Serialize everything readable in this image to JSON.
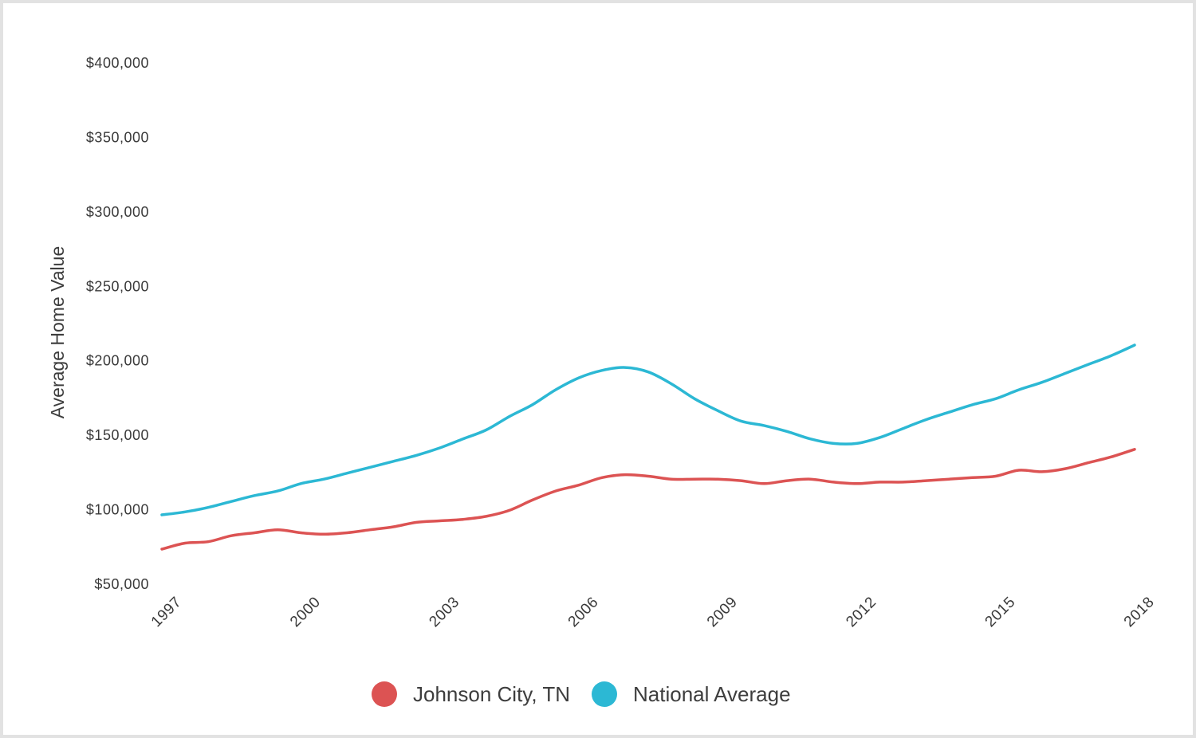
{
  "chart_data": {
    "type": "line",
    "ylabel": "Average Home Value",
    "xlabel": "",
    "ylim": [
      50000,
      400000
    ],
    "xlim": [
      1997,
      2018
    ],
    "y_ticks": [
      "$50,000",
      "$100,000",
      "$150,000",
      "$200,000",
      "$250,000",
      "$300,000",
      "$350,000",
      "$400,000"
    ],
    "y_tick_values": [
      50000,
      100000,
      150000,
      200000,
      250000,
      300000,
      350000,
      400000
    ],
    "x_ticks": [
      "1997",
      "2000",
      "2003",
      "2006",
      "2009",
      "2012",
      "2015",
      "2018"
    ],
    "x_tick_values": [
      1997,
      2000,
      2003,
      2006,
      2009,
      2012,
      2015,
      2018
    ],
    "grid": false,
    "legend_position": "bottom-center",
    "series": [
      {
        "name": "Johnson City, TN",
        "color": "#dc5353",
        "points": [
          [
            1997.0,
            73000
          ],
          [
            1997.5,
            77000
          ],
          [
            1998.0,
            78000
          ],
          [
            1998.5,
            82000
          ],
          [
            1999.0,
            84000
          ],
          [
            1999.5,
            86000
          ],
          [
            2000.0,
            84000
          ],
          [
            2000.5,
            83000
          ],
          [
            2001.0,
            84000
          ],
          [
            2001.5,
            86000
          ],
          [
            2002.0,
            88000
          ],
          [
            2002.5,
            91000
          ],
          [
            2003.0,
            92000
          ],
          [
            2003.5,
            93000
          ],
          [
            2004.0,
            95000
          ],
          [
            2004.5,
            99000
          ],
          [
            2005.0,
            106000
          ],
          [
            2005.5,
            112000
          ],
          [
            2006.0,
            116000
          ],
          [
            2006.5,
            121000
          ],
          [
            2007.0,
            123000
          ],
          [
            2007.5,
            122000
          ],
          [
            2008.0,
            120000
          ],
          [
            2008.5,
            120000
          ],
          [
            2009.0,
            120000
          ],
          [
            2009.5,
            119000
          ],
          [
            2010.0,
            117000
          ],
          [
            2010.5,
            119000
          ],
          [
            2011.0,
            120000
          ],
          [
            2011.5,
            118000
          ],
          [
            2012.0,
            117000
          ],
          [
            2012.5,
            118000
          ],
          [
            2013.0,
            118000
          ],
          [
            2013.5,
            119000
          ],
          [
            2014.0,
            120000
          ],
          [
            2014.5,
            121000
          ],
          [
            2015.0,
            122000
          ],
          [
            2015.5,
            126000
          ],
          [
            2016.0,
            125000
          ],
          [
            2016.5,
            127000
          ],
          [
            2017.0,
            131000
          ],
          [
            2017.5,
            135000
          ],
          [
            2018.0,
            140000
          ]
        ]
      },
      {
        "name": "National Average",
        "color": "#2cb8d4",
        "points": [
          [
            1997.0,
            96000
          ],
          [
            1997.5,
            98000
          ],
          [
            1998.0,
            101000
          ],
          [
            1998.5,
            105000
          ],
          [
            1999.0,
            109000
          ],
          [
            1999.5,
            112000
          ],
          [
            2000.0,
            117000
          ],
          [
            2000.5,
            120000
          ],
          [
            2001.0,
            124000
          ],
          [
            2001.5,
            128000
          ],
          [
            2002.0,
            132000
          ],
          [
            2002.5,
            136000
          ],
          [
            2003.0,
            141000
          ],
          [
            2003.5,
            147000
          ],
          [
            2004.0,
            153000
          ],
          [
            2004.5,
            162000
          ],
          [
            2005.0,
            170000
          ],
          [
            2005.5,
            180000
          ],
          [
            2006.0,
            188000
          ],
          [
            2006.5,
            193000
          ],
          [
            2007.0,
            195000
          ],
          [
            2007.5,
            192000
          ],
          [
            2008.0,
            184000
          ],
          [
            2008.5,
            174000
          ],
          [
            2009.0,
            166000
          ],
          [
            2009.5,
            159000
          ],
          [
            2010.0,
            156000
          ],
          [
            2010.5,
            152000
          ],
          [
            2011.0,
            147000
          ],
          [
            2011.5,
            144000
          ],
          [
            2012.0,
            144000
          ],
          [
            2012.5,
            148000
          ],
          [
            2013.0,
            154000
          ],
          [
            2013.5,
            160000
          ],
          [
            2014.0,
            165000
          ],
          [
            2014.5,
            170000
          ],
          [
            2015.0,
            174000
          ],
          [
            2015.5,
            180000
          ],
          [
            2016.0,
            185000
          ],
          [
            2016.5,
            191000
          ],
          [
            2017.0,
            197000
          ],
          [
            2017.5,
            203000
          ],
          [
            2018.0,
            210000
          ]
        ]
      }
    ]
  }
}
